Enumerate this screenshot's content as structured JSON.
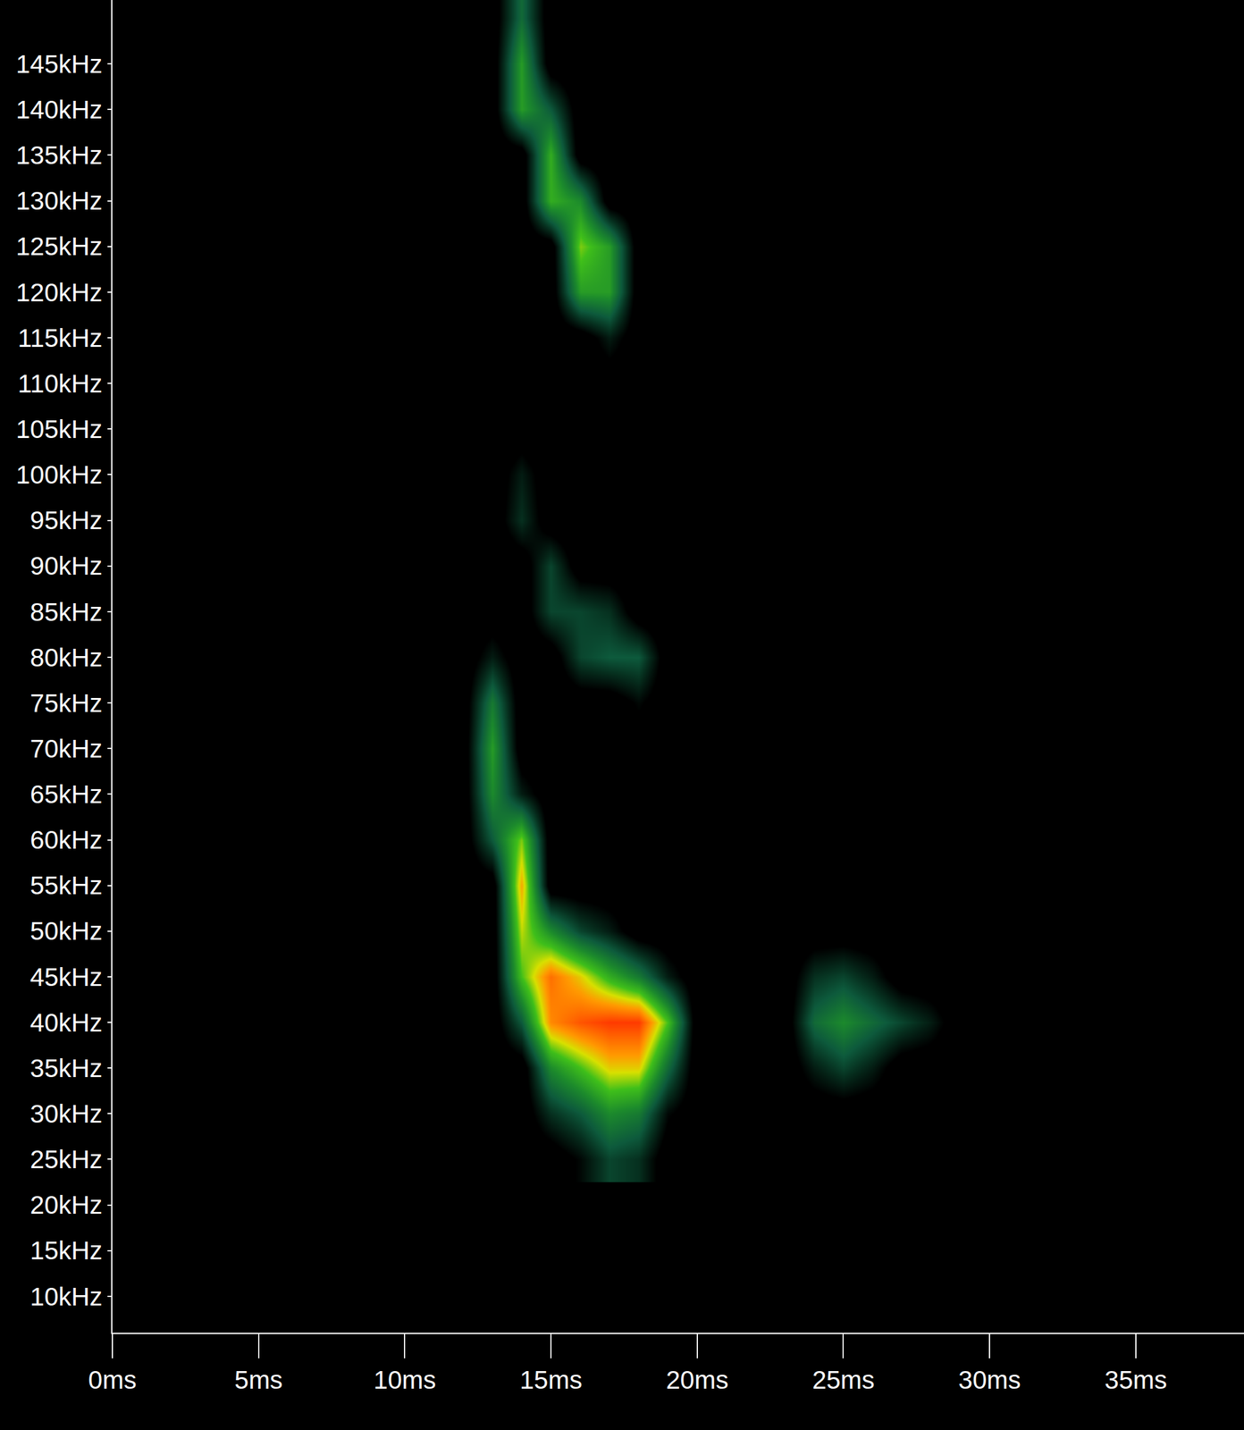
{
  "chart_data": {
    "type": "heatmap",
    "x": [
      12,
      13,
      14,
      15,
      16,
      17,
      18,
      19,
      20,
      21,
      22,
      23,
      24,
      25,
      26,
      27,
      28,
      29,
      30
    ],
    "y": [
      25,
      30,
      35,
      40,
      45,
      50,
      55,
      60,
      65,
      70,
      75,
      80,
      85,
      90,
      95,
      100,
      105,
      110,
      115,
      120,
      125,
      130,
      135,
      140,
      145,
      150
    ],
    "values": [
      [
        0,
        0,
        0,
        0,
        10,
        25,
        20,
        0,
        0,
        0,
        0,
        0,
        0,
        0,
        0,
        0,
        0,
        0,
        0
      ],
      [
        0,
        0,
        0,
        20,
        30,
        45,
        40,
        10,
        0,
        0,
        0,
        0,
        0,
        0,
        0,
        0,
        0,
        0,
        0
      ],
      [
        0,
        0,
        0,
        45,
        60,
        75,
        75,
        35,
        0,
        0,
        0,
        0,
        15,
        25,
        15,
        0,
        0,
        0,
        0
      ],
      [
        0,
        0,
        30,
        85,
        95,
        100,
        100,
        60,
        0,
        0,
        0,
        0,
        35,
        45,
        35,
        25,
        15,
        0,
        0
      ],
      [
        0,
        0,
        60,
        90,
        75,
        55,
        40,
        15,
        0,
        0,
        0,
        0,
        20,
        25,
        15,
        0,
        0,
        0,
        0
      ],
      [
        0,
        0,
        70,
        45,
        25,
        15,
        0,
        0,
        0,
        0,
        0,
        0,
        0,
        0,
        0,
        0,
        0,
        0,
        0
      ],
      [
        0,
        0,
        80,
        0,
        0,
        0,
        0,
        0,
        0,
        0,
        0,
        0,
        0,
        0,
        0,
        0,
        0,
        0,
        0
      ],
      [
        0,
        30,
        65,
        0,
        0,
        0,
        0,
        0,
        0,
        0,
        0,
        0,
        0,
        0,
        0,
        0,
        0,
        0,
        0
      ],
      [
        0,
        45,
        15,
        0,
        0,
        0,
        0,
        0,
        0,
        0,
        0,
        0,
        0,
        0,
        0,
        0,
        0,
        0,
        0
      ],
      [
        0,
        50,
        0,
        0,
        0,
        0,
        0,
        0,
        0,
        0,
        0,
        0,
        0,
        0,
        0,
        0,
        0,
        0,
        0
      ],
      [
        0,
        40,
        0,
        0,
        0,
        0,
        10,
        0,
        0,
        0,
        0,
        0,
        0,
        0,
        0,
        0,
        0,
        0,
        0
      ],
      [
        0,
        15,
        0,
        0,
        25,
        30,
        30,
        0,
        0,
        0,
        0,
        0,
        0,
        0,
        0,
        0,
        0,
        0,
        0
      ],
      [
        0,
        0,
        0,
        25,
        25,
        20,
        0,
        0,
        0,
        0,
        0,
        0,
        0,
        0,
        0,
        0,
        0,
        0,
        0
      ],
      [
        0,
        0,
        0,
        25,
        0,
        0,
        0,
        0,
        0,
        0,
        0,
        0,
        0,
        0,
        0,
        0,
        0,
        0,
        0
      ],
      [
        0,
        0,
        20,
        0,
        0,
        0,
        0,
        0,
        0,
        0,
        0,
        0,
        0,
        0,
        0,
        0,
        0,
        0,
        0
      ],
      [
        0,
        0,
        15,
        0,
        0,
        0,
        0,
        0,
        0,
        0,
        0,
        0,
        0,
        0,
        0,
        0,
        0,
        0,
        0
      ],
      [
        0,
        0,
        0,
        0,
        0,
        0,
        0,
        0,
        0,
        0,
        0,
        0,
        0,
        0,
        0,
        0,
        0,
        0,
        0
      ],
      [
        0,
        0,
        0,
        0,
        0,
        0,
        0,
        0,
        0,
        0,
        0,
        0,
        0,
        0,
        0,
        0,
        0,
        0,
        0
      ],
      [
        0,
        0,
        0,
        0,
        0,
        15,
        0,
        0,
        0,
        0,
        0,
        0,
        0,
        0,
        0,
        0,
        0,
        0,
        0
      ],
      [
        0,
        0,
        0,
        0,
        50,
        50,
        0,
        0,
        0,
        0,
        0,
        0,
        0,
        0,
        0,
        0,
        0,
        0,
        0
      ],
      [
        0,
        0,
        0,
        0,
        65,
        50,
        0,
        0,
        0,
        0,
        0,
        0,
        0,
        0,
        0,
        0,
        0,
        0,
        0
      ],
      [
        0,
        0,
        0,
        55,
        45,
        0,
        0,
        0,
        0,
        0,
        0,
        0,
        0,
        0,
        0,
        0,
        0,
        0,
        0
      ],
      [
        0,
        0,
        0,
        55,
        0,
        0,
        0,
        0,
        0,
        0,
        0,
        0,
        0,
        0,
        0,
        0,
        0,
        0,
        0
      ],
      [
        0,
        0,
        50,
        30,
        0,
        0,
        0,
        0,
        0,
        0,
        0,
        0,
        0,
        0,
        0,
        0,
        0,
        0,
        0
      ],
      [
        0,
        0,
        50,
        0,
        0,
        0,
        0,
        0,
        0,
        0,
        0,
        0,
        0,
        0,
        0,
        0,
        0,
        0,
        0
      ],
      [
        0,
        0,
        35,
        0,
        0,
        0,
        0,
        0,
        0,
        0,
        0,
        0,
        0,
        0,
        0,
        0,
        0,
        0,
        0
      ]
    ],
    "zlim": [
      0,
      100
    ],
    "xlim": [
      0,
      38.7
    ],
    "ylim": [
      6,
      152
    ],
    "xticks": [
      {
        "value": 0,
        "label": "0ms"
      },
      {
        "value": 5,
        "label": "5ms"
      },
      {
        "value": 10,
        "label": "10ms"
      },
      {
        "value": 15,
        "label": "15ms"
      },
      {
        "value": 20,
        "label": "20ms"
      },
      {
        "value": 25,
        "label": "25ms"
      },
      {
        "value": 30,
        "label": "30ms"
      },
      {
        "value": 35,
        "label": "35ms"
      }
    ],
    "yticks": [
      {
        "value": 10,
        "label": "10kHz"
      },
      {
        "value": 15,
        "label": "15kHz"
      },
      {
        "value": 20,
        "label": "20kHz"
      },
      {
        "value": 25,
        "label": "25kHz"
      },
      {
        "value": 30,
        "label": "30kHz"
      },
      {
        "value": 35,
        "label": "35kHz"
      },
      {
        "value": 40,
        "label": "40kHz"
      },
      {
        "value": 45,
        "label": "45kHz"
      },
      {
        "value": 50,
        "label": "50kHz"
      },
      {
        "value": 55,
        "label": "55kHz"
      },
      {
        "value": 60,
        "label": "60kHz"
      },
      {
        "value": 65,
        "label": "65kHz"
      },
      {
        "value": 70,
        "label": "70kHz"
      },
      {
        "value": 75,
        "label": "75kHz"
      },
      {
        "value": 80,
        "label": "80kHz"
      },
      {
        "value": 85,
        "label": "85kHz"
      },
      {
        "value": 90,
        "label": "90kHz"
      },
      {
        "value": 95,
        "label": "95kHz"
      },
      {
        "value": 100,
        "label": "100kHz"
      },
      {
        "value": 105,
        "label": "105kHz"
      },
      {
        "value": 110,
        "label": "110kHz"
      },
      {
        "value": 115,
        "label": "115kHz"
      },
      {
        "value": 120,
        "label": "120kHz"
      },
      {
        "value": 125,
        "label": "125kHz"
      },
      {
        "value": 130,
        "label": "130kHz"
      },
      {
        "value": 135,
        "label": "135kHz"
      },
      {
        "value": 140,
        "label": "140kHz"
      },
      {
        "value": 145,
        "label": "145kHz"
      }
    ],
    "grid": false
  }
}
